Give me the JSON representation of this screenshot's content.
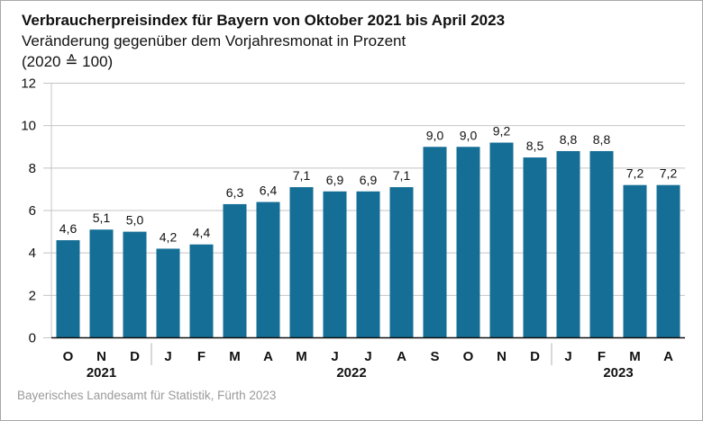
{
  "chart_data": {
    "type": "bar",
    "title": "Verbraucherpreisindex für Bayern von Oktober 2021 bis April 2023",
    "subtitle": "Veränderung gegenüber dem Vorjahresmonat in Prozent",
    "subtitle2": "(2020 ≙ 100)",
    "source": "Bayerisches Landesamt für Statistik, Fürth 2023",
    "xlabel": "",
    "ylabel": "",
    "ylim": [
      0,
      12
    ],
    "yticks": [
      0,
      2,
      4,
      6,
      8,
      10,
      12
    ],
    "grid": true,
    "bar_color": "#146e96",
    "categories": [
      "O",
      "N",
      "D",
      "J",
      "F",
      "M",
      "A",
      "M",
      "J",
      "J",
      "A",
      "S",
      "O",
      "N",
      "D",
      "J",
      "F",
      "M",
      "A"
    ],
    "values": [
      4.6,
      5.1,
      5.0,
      4.2,
      4.4,
      6.3,
      6.4,
      7.1,
      6.9,
      6.9,
      7.1,
      9.0,
      9.0,
      9.2,
      8.5,
      8.8,
      8.8,
      7.2,
      7.2
    ],
    "data_labels": [
      "4,6",
      "5,1",
      "5,0",
      "4,2",
      "4,4",
      "6,3",
      "6,4",
      "7,1",
      "6,9",
      "6,9",
      "7,1",
      "9,0",
      "9,0",
      "9,2",
      "8,5",
      "8,8",
      "8,8",
      "7,2",
      "7,2"
    ],
    "year_groups": [
      {
        "label": "2021",
        "start": 0,
        "end": 2
      },
      {
        "label": "2022",
        "start": 3,
        "end": 14
      },
      {
        "label": "2023",
        "start": 15,
        "end": 18
      }
    ]
  }
}
